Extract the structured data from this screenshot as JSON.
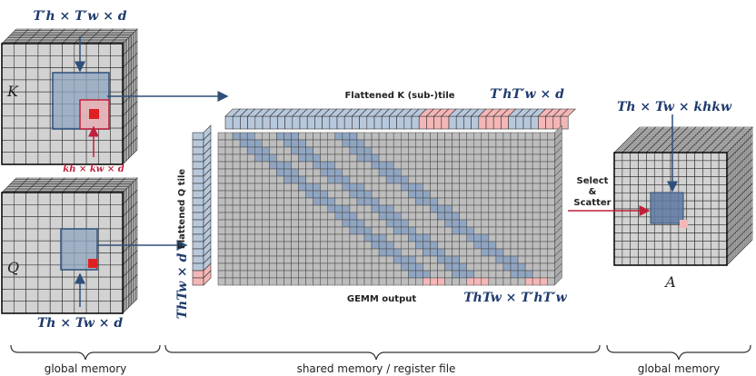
{
  "left": {
    "k_tile_dims": "T′h × T′w × d",
    "k_label": "K",
    "k_window_dims": "kh × kw × d",
    "q_label": "Q",
    "q_tile_dims": "Th × Tw × d"
  },
  "middle": {
    "k_tile_title": "Flattened K (sub-)tile",
    "k_tile_dims": "T′hT′w × d",
    "q_tile_title": "Flattened Q tile",
    "q_tile_dims": "ThTw × d",
    "gemm_title": "GEMM output",
    "gemm_dims": "ThTw × T′hT′w"
  },
  "scatter": {
    "line1": "Select",
    "line2": "&",
    "line3": "Scatter"
  },
  "right": {
    "dims": "Th × Tw × khkw",
    "label": "A"
  },
  "footer": {
    "left": "global memory",
    "middle": "shared memory / register file",
    "right": "global memory"
  }
}
